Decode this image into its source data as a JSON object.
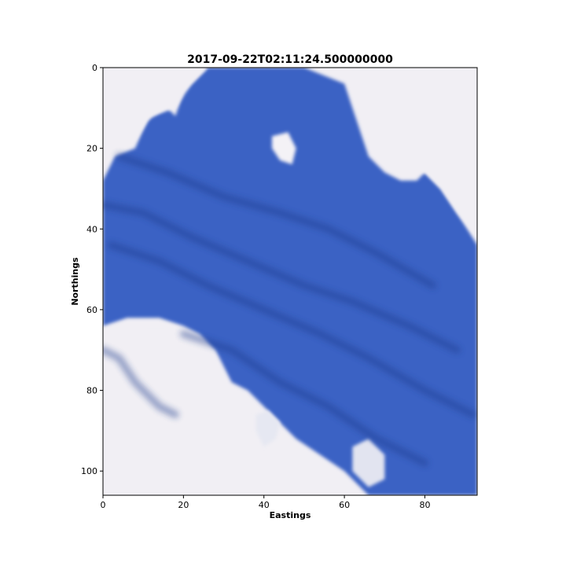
{
  "chart_data": {
    "type": "heatmap",
    "title": "2017-09-22T02:11:24.500000000",
    "xlabel": "Eastings",
    "ylabel": "Northings",
    "xlim": [
      0,
      93
    ],
    "ylim": [
      106,
      0
    ],
    "xticks": [
      0,
      20,
      40,
      60,
      80
    ],
    "yticks": [
      0,
      20,
      40,
      60,
      80,
      100
    ],
    "grid": false,
    "legend": "none",
    "image_extent": {
      "cols": 93,
      "rows": 106
    },
    "colors": {
      "water_dark": "#1a3a8c",
      "water_mid": "#3a62c4",
      "water_light": "#6b8fdc",
      "cloud": "#f1eff4",
      "cloud_shadow": "#c9d0e4"
    },
    "regions": [
      {
        "name": "water",
        "color": "#3a62c4",
        "polygon": [
          [
            0,
            28
          ],
          [
            3,
            22
          ],
          [
            8,
            20
          ],
          [
            11,
            13
          ],
          [
            16,
            10
          ],
          [
            18,
            12
          ],
          [
            20,
            6
          ],
          [
            24,
            2
          ],
          [
            26,
            0
          ],
          [
            50,
            0
          ],
          [
            60,
            4
          ],
          [
            62,
            10
          ],
          [
            64,
            16
          ],
          [
            66,
            22
          ],
          [
            70,
            26
          ],
          [
            74,
            28
          ],
          [
            78,
            28
          ],
          [
            80,
            26
          ],
          [
            84,
            30
          ],
          [
            88,
            36
          ],
          [
            93,
            44
          ],
          [
            93,
            106
          ],
          [
            66,
            106
          ],
          [
            60,
            100
          ],
          [
            54,
            96
          ],
          [
            48,
            92
          ],
          [
            42,
            86
          ],
          [
            36,
            80
          ],
          [
            32,
            78
          ],
          [
            30,
            74
          ],
          [
            28,
            70
          ],
          [
            24,
            66
          ],
          [
            20,
            64
          ],
          [
            14,
            62
          ],
          [
            6,
            62
          ],
          [
            0,
            64
          ]
        ]
      },
      {
        "name": "cloud-lower-left",
        "color": "#f1eff4",
        "polygon": [
          [
            0,
            70
          ],
          [
            4,
            66
          ],
          [
            10,
            64
          ],
          [
            16,
            64
          ],
          [
            22,
            66
          ],
          [
            26,
            70
          ],
          [
            28,
            76
          ],
          [
            32,
            82
          ],
          [
            34,
            88
          ],
          [
            36,
            94
          ],
          [
            40,
            98
          ],
          [
            44,
            100
          ],
          [
            46,
            106
          ],
          [
            0,
            106
          ]
        ]
      },
      {
        "name": "cloud-top-left",
        "color": "#f1eff4",
        "polygon": [
          [
            0,
            0
          ],
          [
            26,
            0
          ],
          [
            22,
            4
          ],
          [
            18,
            10
          ],
          [
            12,
            12
          ],
          [
            8,
            18
          ],
          [
            4,
            20
          ],
          [
            0,
            24
          ]
        ]
      },
      {
        "name": "cloud-top-right",
        "color": "#f1eff4",
        "polygon": [
          [
            60,
            0
          ],
          [
            93,
            0
          ],
          [
            93,
            42
          ],
          [
            88,
            36
          ],
          [
            84,
            30
          ],
          [
            80,
            26
          ],
          [
            76,
            26
          ],
          [
            72,
            22
          ],
          [
            66,
            18
          ],
          [
            64,
            10
          ],
          [
            62,
            4
          ]
        ]
      },
      {
        "name": "cloud-patch-center",
        "color": "#f4f2f6",
        "polygon": [
          [
            42,
            17
          ],
          [
            46,
            16
          ],
          [
            48,
            20
          ],
          [
            47,
            24
          ],
          [
            44,
            23
          ],
          [
            42,
            20
          ]
        ]
      },
      {
        "name": "cloud-patch-bottom-mid",
        "color": "#e6e8f2",
        "polygon": [
          [
            38,
            86
          ],
          [
            41,
            85
          ],
          [
            44,
            88
          ],
          [
            43,
            92
          ],
          [
            40,
            94
          ],
          [
            38,
            90
          ]
        ]
      },
      {
        "name": "cloud-patch-bottom-right",
        "color": "#e2e4f0",
        "polygon": [
          [
            62,
            94
          ],
          [
            66,
            92
          ],
          [
            70,
            96
          ],
          [
            70,
            102
          ],
          [
            66,
            104
          ],
          [
            62,
            100
          ]
        ]
      }
    ],
    "dark_streaks": [
      [
        [
          0,
          34
        ],
        [
          10,
          36
        ],
        [
          22,
          42
        ],
        [
          36,
          48
        ],
        [
          50,
          54
        ],
        [
          62,
          58
        ],
        [
          76,
          64
        ],
        [
          88,
          70
        ]
      ],
      [
        [
          2,
          44
        ],
        [
          14,
          48
        ],
        [
          26,
          54
        ],
        [
          40,
          60
        ],
        [
          54,
          66
        ],
        [
          66,
          72
        ],
        [
          80,
          80
        ],
        [
          92,
          86
        ]
      ],
      [
        [
          4,
          22
        ],
        [
          16,
          26
        ],
        [
          30,
          32
        ],
        [
          44,
          36
        ],
        [
          56,
          40
        ],
        [
          68,
          46
        ],
        [
          82,
          54
        ]
      ],
      [
        [
          20,
          66
        ],
        [
          32,
          70
        ],
        [
          44,
          78
        ],
        [
          56,
          84
        ],
        [
          68,
          92
        ],
        [
          80,
          98
        ]
      ],
      [
        [
          0,
          70
        ],
        [
          4,
          72
        ],
        [
          8,
          78
        ],
        [
          14,
          84
        ],
        [
          18,
          86
        ]
      ]
    ]
  }
}
